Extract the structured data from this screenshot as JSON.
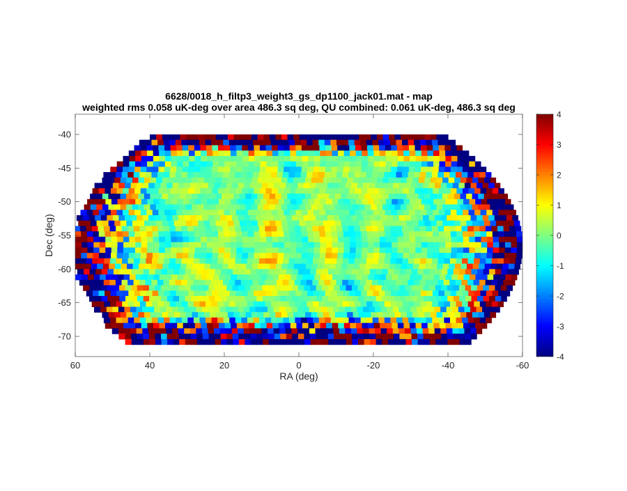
{
  "chart_data": {
    "type": "heatmap",
    "title": "6628/0018_h_filtp3_weight3_gs_dp1100_jack01.mat - map",
    "subtitle": "weighted rms 0.058 uK-deg over area 486.3 sq deg, QU combined: 0.061 uK-deg, 486.3 sq deg",
    "xlabel": "RA (deg)",
    "ylabel": "Dec (deg)",
    "xlim": [
      60,
      -60
    ],
    "ylim": [
      -73,
      -37
    ],
    "x_direction": "reversed",
    "x_ticks": [
      60,
      40,
      20,
      0,
      -20,
      -40,
      -60
    ],
    "x_tick_labels": [
      "60",
      "40",
      "20",
      "0",
      "-20",
      "-40",
      "-60"
    ],
    "y_ticks": [
      -40,
      -45,
      -50,
      -55,
      -60,
      -65,
      -70
    ],
    "y_tick_labels": [
      "-40",
      "-45",
      "-50",
      "-55",
      "-60",
      "-65",
      "-70"
    ],
    "colorbar": {
      "colormap": "jet",
      "clim": [
        -4,
        4
      ],
      "ticks": [
        4,
        3,
        2,
        1,
        0,
        -1,
        -2,
        -3,
        -4
      ],
      "tick_labels": [
        "4",
        "3",
        "2",
        "1",
        "0",
        "-1",
        "-2",
        "-3",
        "-4"
      ],
      "colors": [
        "#00008F",
        "#0000FF",
        "#0080FF",
        "#00FFFF",
        "#80FF80",
        "#FFFF00",
        "#FF8000",
        "#FF0000",
        "#800000"
      ]
    },
    "field": {
      "dec_top": -40,
      "dec_bottom": -71,
      "ra_half_width_top": 40,
      "ra_half_width_mid": 60,
      "ra_half_width_bottom": 45
    },
    "grid": false,
    "background": "#ffffff"
  }
}
